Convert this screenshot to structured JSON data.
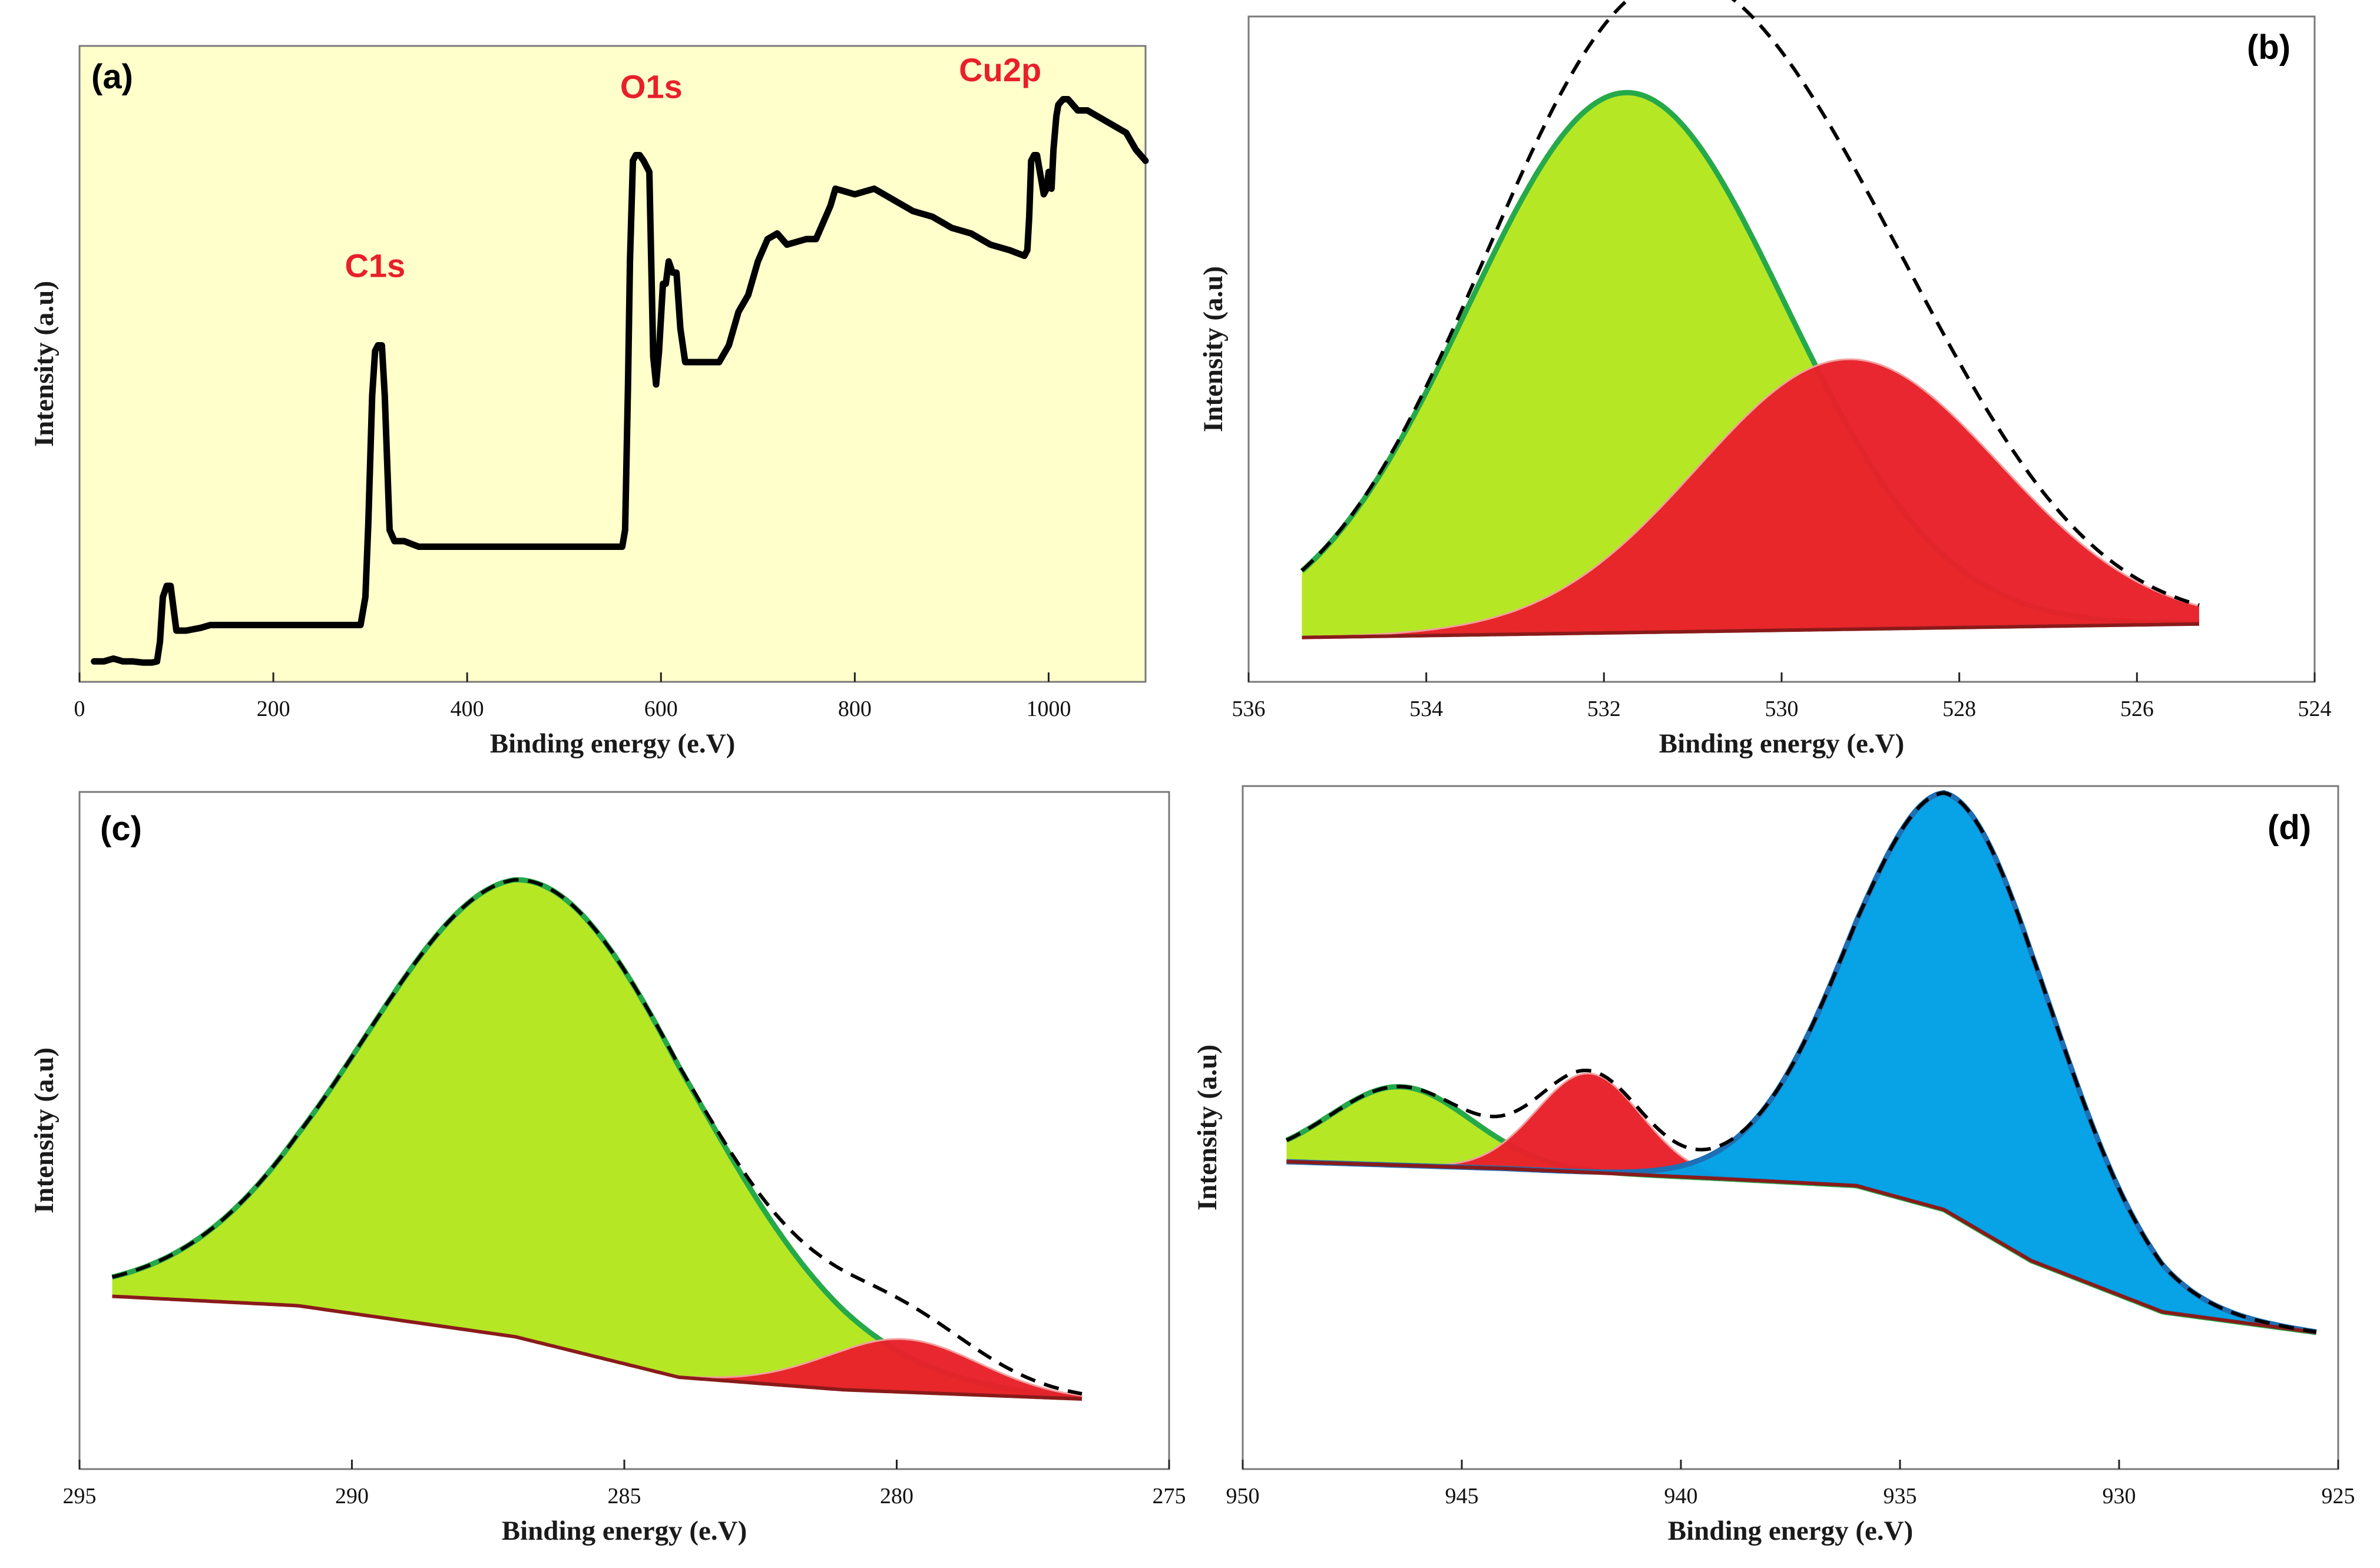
{
  "colors": {
    "survey_bg": "#ffffcc",
    "green": "#b4e61e",
    "green_edge": "#26a94a",
    "red": "#e8202a",
    "blue": "#00a0e6",
    "black": "#000000",
    "label_red": "#e8202a"
  },
  "chart_data": [
    {
      "id": "a",
      "type": "line",
      "panel_label": "(a)",
      "xlabel": "Binding energy (e.V)",
      "ylabel": "Intensity (a.u)",
      "xlim": [
        0,
        1100
      ],
      "ylim": [
        0,
        100
      ],
      "xticks": [
        0,
        200,
        400,
        600,
        800,
        1000
      ],
      "background": "#ffffcc",
      "annotations": [
        {
          "text": "C1s",
          "x": 305,
          "y": 65
        },
        {
          "text": "O1s",
          "x": 590,
          "y": 97
        },
        {
          "text": "Cu2p",
          "x": 950,
          "y": 100
        }
      ],
      "series": [
        {
          "name": "survey",
          "x": [
            15,
            25,
            35,
            45,
            55,
            65,
            75,
            80,
            83,
            86,
            90,
            94,
            97,
            100,
            110,
            125,
            135,
            150,
            175,
            200,
            230,
            260,
            290,
            295,
            298,
            302,
            305,
            308,
            312,
            315,
            320,
            325,
            335,
            350,
            380,
            420,
            470,
            520,
            560,
            563,
            566,
            568,
            571,
            574,
            578,
            582,
            588,
            592,
            595,
            598,
            602,
            605,
            608,
            612,
            616,
            620,
            625,
            628,
            631,
            635,
            640,
            660,
            670,
            675,
            680,
            690,
            700,
            710,
            720,
            730,
            750,
            760,
            770,
            775,
            780,
            800,
            820,
            840,
            860,
            880,
            900,
            920,
            940,
            960,
            975,
            978,
            980,
            982,
            985,
            988,
            992,
            995,
            998,
            1000,
            1003,
            1005,
            1008,
            1010,
            1015,
            1020,
            1025,
            1030,
            1040,
            1050,
            1060,
            1070,
            1080,
            1090,
            1100
          ],
          "y": [
            0.5,
            0.5,
            1,
            0.5,
            0.5,
            0.3,
            0.3,
            0.5,
            4,
            12,
            14,
            14,
            10,
            6,
            6,
            6.5,
            7,
            7,
            7,
            7,
            7,
            7,
            7,
            12,
            25,
            48,
            56,
            57,
            57,
            48,
            24,
            22,
            22,
            21,
            21,
            21,
            21,
            21,
            21,
            24,
            50,
            72,
            90,
            91,
            91,
            90,
            88,
            55,
            50,
            56,
            68,
            68,
            72,
            70,
            70,
            60,
            54,
            54,
            54,
            54,
            54,
            54,
            57,
            60,
            63,
            66,
            72,
            76,
            77,
            75,
            76,
            76,
            80,
            82,
            85,
            84,
            85,
            83,
            81,
            80,
            78,
            77,
            75,
            74,
            73,
            74,
            80,
            90,
            91,
            91,
            87,
            84,
            85,
            88,
            85,
            92,
            98,
            100,
            101,
            101,
            100,
            99,
            99,
            98,
            97,
            96,
            95,
            92,
            90
          ]
        }
      ]
    },
    {
      "id": "b",
      "type": "area",
      "panel_label": "(b)",
      "xlabel": "Binding energy (e.V)",
      "ylabel": "Intensity (a.u)",
      "xlim": [
        536,
        524
      ],
      "ylim": [
        -0.25,
        3.2
      ],
      "xticks": [
        536,
        534,
        532,
        530,
        528,
        526,
        524
      ],
      "x_range": [
        535.4,
        525.3
      ],
      "baseline": {
        "start": -0.02,
        "end": 0.05
      },
      "components": [
        {
          "name": "green",
          "center": 531.75,
          "height": 2.8,
          "fwhm": 4.2,
          "fill": "#b4e61e",
          "edge": "#26a94a"
        },
        {
          "name": "red",
          "center": 529.25,
          "height": 1.4,
          "fwhm": 4.0,
          "fill": "#e8202a",
          "edge": "#f2a0a0"
        }
      ],
      "envelope_style": "dashed"
    },
    {
      "id": "c",
      "type": "area",
      "panel_label": "(c)",
      "xlabel": "Binding energy (e.V)",
      "ylabel": "Intensity (a.u)",
      "xlim": [
        295,
        275
      ],
      "ylim": [
        -0.45,
        3.9
      ],
      "xticks": [
        295,
        290,
        285,
        280,
        275
      ],
      "x_range": [
        294.4,
        276.6
      ],
      "baseline_points": [
        [
          294.4,
          0.66
        ],
        [
          291,
          0.6
        ],
        [
          287,
          0.4
        ],
        [
          284,
          0.14
        ],
        [
          281,
          0.06
        ],
        [
          276.6,
          0
        ]
      ],
      "components": [
        {
          "name": "green",
          "center": 286.7,
          "height": 2.95,
          "fwhm": 7.2,
          "fill": "#b4e61e",
          "edge": "#26a94a"
        },
        {
          "name": "red",
          "center": 279.9,
          "height": 0.34,
          "fwhm": 3.3,
          "fill": "#e8202a",
          "edge": "#f2a0a0"
        }
      ],
      "envelope_style": "dashed"
    },
    {
      "id": "d",
      "type": "area",
      "panel_label": "(d)",
      "xlabel": "Binding energy (e.V)",
      "ylabel": "Intensity (a.u)",
      "xlim": [
        950,
        925
      ],
      "ylim": [
        -0.8,
        3.2
      ],
      "xticks": [
        950,
        945,
        940,
        935,
        930,
        925
      ],
      "x_range": [
        949.0,
        925.5
      ],
      "baseline_points": [
        [
          949,
          1.0
        ],
        [
          944,
          0.96
        ],
        [
          939,
          0.9
        ],
        [
          936,
          0.86
        ],
        [
          934,
          0.72
        ],
        [
          932,
          0.42
        ],
        [
          929,
          0.12
        ],
        [
          925.5,
          0
        ]
      ],
      "components": [
        {
          "name": "green",
          "center": 946.4,
          "height": 0.46,
          "fwhm": 3.8,
          "fill": "#b4e61e",
          "edge": "#26a94a"
        },
        {
          "name": "red",
          "center": 942.1,
          "height": 0.58,
          "fwhm": 2.8,
          "fill": "#e8202a",
          "edge": "#f2a0a0"
        },
        {
          "name": "blue",
          "center": 933.8,
          "height": 2.45,
          "fwhm": 5.4,
          "fill": "#00a0e6",
          "edge": "#1f6fb4"
        }
      ],
      "envelope_style": "dashed"
    }
  ]
}
